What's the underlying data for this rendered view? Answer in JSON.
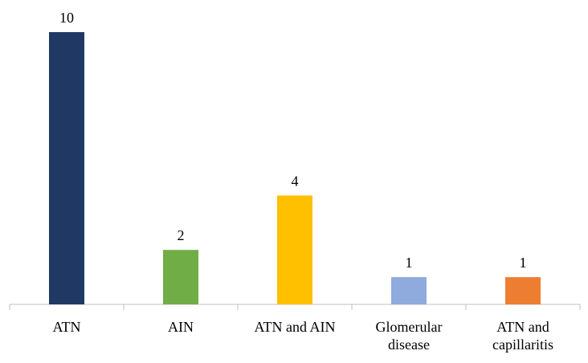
{
  "chart_data": {
    "type": "bar",
    "categories": [
      "ATN",
      "AIN",
      "ATN and AIN",
      "Glomerular disease",
      "ATN and capillaritis"
    ],
    "values": [
      10,
      2,
      4,
      1,
      1
    ],
    "colors": [
      "#203864",
      "#70ad47",
      "#ffc000",
      "#8faadc",
      "#ed7d31"
    ],
    "ylim": [
      0,
      10
    ]
  }
}
